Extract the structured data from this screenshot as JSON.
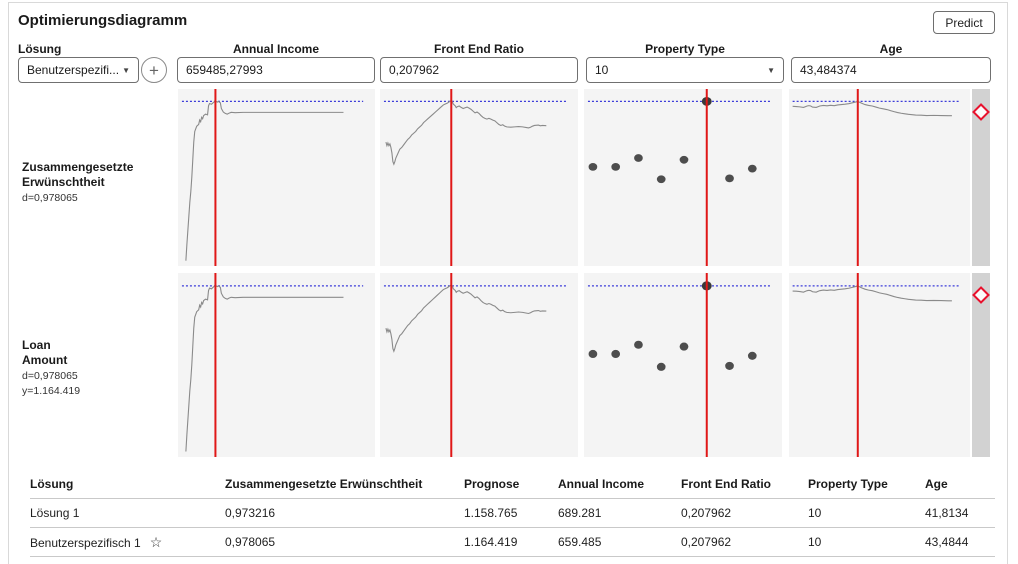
{
  "title": "Optimierungsdiagramm",
  "toolbar": {
    "predict_label": "Predict"
  },
  "icons": {
    "dropdown_chevron": "▼",
    "add": "+",
    "star": "☆"
  },
  "controls": {
    "solution_label": "Lösung",
    "solution_value": "Benutzerspezifi...",
    "factors": [
      {
        "label": "Annual Income",
        "value": "659485,27993",
        "control": "text-input"
      },
      {
        "label": "Front End Ratio",
        "value": "0,207962",
        "control": "text-input"
      },
      {
        "label": "Property Type",
        "value": "10",
        "control": "dropdown"
      },
      {
        "label": "Age",
        "value": "43,484374",
        "control": "text-input"
      }
    ]
  },
  "profiler_rows": [
    {
      "line1": "Zusammengesetzte",
      "line2": "Erwünschtheit",
      "stat1": "d=0,978065",
      "stat2": ""
    },
    {
      "line1": "Loan",
      "line2": "Amount",
      "stat1": "d=0,978065",
      "stat2": "y=1.164.419"
    }
  ],
  "chart_data": {
    "type": "line",
    "description": "Prediction profiler: response trace vs each of 4 factors; same trace shapes shown in row 1 (composite desirability d=0,978065) and row 2 (Loan Amount, y=1.164.419). Red vertical line = current factor setting, blue dotted line = optimum response level, red diamond handle in gray strip at right of each row.",
    "rows": [
      {
        "response": "Zusammengesetzte Erwünschtheit",
        "d": "0,978065"
      },
      {
        "response": "Loan Amount",
        "d": "0,978065",
        "y": "1.164.419"
      }
    ],
    "target_line_y_pct": 7,
    "columns": [
      {
        "factor": "Annual Income",
        "current_value": "659485,27993",
        "kind": "line",
        "red_line_x_pct": 19,
        "curve": [
          [
            4,
            97
          ],
          [
            4.5,
            88
          ],
          [
            5,
            80
          ],
          [
            5.5,
            72
          ],
          [
            6,
            64
          ],
          [
            6.5,
            58
          ],
          [
            7,
            50
          ],
          [
            7.5,
            40
          ],
          [
            8,
            30
          ],
          [
            8.5,
            24
          ],
          [
            9,
            22.5
          ],
          [
            9.5,
            21
          ],
          [
            10.5,
            20
          ],
          [
            11,
            17.5
          ],
          [
            11.5,
            18.5
          ],
          [
            12,
            16
          ],
          [
            12.5,
            16.8
          ],
          [
            13,
            15
          ],
          [
            14,
            14.2
          ],
          [
            15,
            14.6
          ],
          [
            15.5,
            9.5
          ],
          [
            16,
            8.2
          ],
          [
            17,
            8.6
          ],
          [
            18,
            7.6
          ],
          [
            19,
            6.8
          ],
          [
            20,
            7.4
          ],
          [
            20.5,
            7
          ],
          [
            21.5,
            7.8
          ],
          [
            22,
            11
          ],
          [
            23,
            13
          ],
          [
            24,
            13.8
          ],
          [
            25,
            14.2
          ],
          [
            26,
            13.6
          ],
          [
            27,
            13.2
          ],
          [
            29,
            13.4
          ],
          [
            33,
            13.2
          ],
          [
            84,
            13.2
          ]
        ]
      },
      {
        "factor": "Front End Ratio",
        "current_value": "0,207962",
        "kind": "line",
        "red_line_x_pct": 36,
        "curve": [
          [
            3,
            30
          ],
          [
            3.5,
            32
          ],
          [
            4,
            30.5
          ],
          [
            4.5,
            32
          ],
          [
            5,
            31
          ],
          [
            5.5,
            33
          ],
          [
            6,
            36
          ],
          [
            6.5,
            41
          ],
          [
            7,
            42.5
          ],
          [
            7.5,
            41
          ],
          [
            8,
            39
          ],
          [
            9,
            36.5
          ],
          [
            10,
            34
          ],
          [
            11,
            33
          ],
          [
            12,
            31.5
          ],
          [
            13,
            30
          ],
          [
            14,
            28.5
          ],
          [
            15,
            27.5
          ],
          [
            16,
            26
          ],
          [
            17,
            25
          ],
          [
            18,
            24
          ],
          [
            19,
            22.5
          ],
          [
            20,
            21.5
          ],
          [
            21,
            20.5
          ],
          [
            22,
            19
          ],
          [
            23,
            18
          ],
          [
            24,
            17
          ],
          [
            25,
            16
          ],
          [
            26,
            15
          ],
          [
            27,
            14
          ],
          [
            28,
            13
          ],
          [
            29,
            12
          ],
          [
            30,
            11
          ],
          [
            31,
            10
          ],
          [
            32,
            9
          ],
          [
            33,
            8.5
          ],
          [
            34,
            8
          ],
          [
            35,
            7.2
          ],
          [
            36,
            6.5
          ],
          [
            36.5,
            7
          ],
          [
            37,
            8.5
          ],
          [
            38,
            9.5
          ],
          [
            38.5,
            10.5
          ],
          [
            39,
            10
          ],
          [
            40,
            9.6
          ],
          [
            41,
            10.4
          ],
          [
            42,
            11
          ],
          [
            43,
            10.6
          ],
          [
            44,
            10.2
          ],
          [
            45,
            10.8
          ],
          [
            46,
            11.5
          ],
          [
            47,
            12.5
          ],
          [
            48,
            13.5
          ],
          [
            49,
            13
          ],
          [
            50,
            13.8
          ],
          [
            51,
            15
          ],
          [
            52,
            16
          ],
          [
            53,
            16.6
          ],
          [
            54,
            17
          ],
          [
            55,
            16.6
          ],
          [
            56,
            17
          ],
          [
            57,
            17.6
          ],
          [
            58,
            18
          ],
          [
            59,
            19
          ],
          [
            60,
            20
          ],
          [
            61,
            20.6
          ],
          [
            62,
            20.2
          ],
          [
            63,
            21
          ],
          [
            64,
            21.4
          ],
          [
            66,
            21.6
          ],
          [
            68,
            21.4
          ],
          [
            70,
            21.2
          ],
          [
            72,
            21.4
          ],
          [
            74,
            21.8
          ],
          [
            75,
            22
          ],
          [
            76,
            21.6
          ],
          [
            77,
            21
          ],
          [
            78,
            20.6
          ],
          [
            80,
            20.4
          ],
          [
            81,
            20.8
          ],
          [
            82,
            20.6
          ],
          [
            84,
            20.7
          ]
        ]
      },
      {
        "factor": "Property Type",
        "current_value": "10",
        "kind": "scatter",
        "red_line_x_pct": 62,
        "points": [
          [
            4.5,
            44
          ],
          [
            16,
            44
          ],
          [
            27.5,
            39
          ],
          [
            39,
            51
          ],
          [
            50.5,
            40
          ],
          [
            73.5,
            50.5
          ],
          [
            85,
            45
          ]
        ],
        "selected_point": [
          62,
          7
        ]
      },
      {
        "factor": "Age",
        "current_value": "43,484374",
        "kind": "line",
        "red_line_x_pct": 38,
        "curve": [
          [
            2,
            9.8
          ],
          [
            4,
            9.9
          ],
          [
            6,
            10.1
          ],
          [
            8,
            10.4
          ],
          [
            9,
            10
          ],
          [
            10,
            9.6
          ],
          [
            11,
            9.4
          ],
          [
            12,
            9.6
          ],
          [
            13,
            10.2
          ],
          [
            15,
            10.4
          ],
          [
            16,
            10
          ],
          [
            17,
            9.6
          ],
          [
            19,
            9.3
          ],
          [
            21,
            9.5
          ],
          [
            23,
            9.2
          ],
          [
            25,
            9.4
          ],
          [
            27,
            9
          ],
          [
            29,
            8.8
          ],
          [
            31,
            8.6
          ],
          [
            33,
            8.3
          ],
          [
            35,
            7.8
          ],
          [
            37,
            7.3
          ],
          [
            38,
            7.1
          ],
          [
            39,
            7.5
          ],
          [
            40,
            8
          ],
          [
            42,
            8.8
          ],
          [
            44,
            9.3
          ],
          [
            46,
            9.6
          ],
          [
            48,
            10.2
          ],
          [
            50,
            10.8
          ],
          [
            52,
            11.2
          ],
          [
            54,
            11.6
          ],
          [
            56,
            12.2
          ],
          [
            58,
            12.8
          ],
          [
            60,
            13.3
          ],
          [
            62,
            13.7
          ],
          [
            64,
            14
          ],
          [
            66,
            14.3
          ],
          [
            68,
            14.5
          ],
          [
            70,
            14.7
          ],
          [
            73,
            14.8
          ],
          [
            76,
            15
          ],
          [
            80,
            14.9
          ],
          [
            84,
            15
          ],
          [
            88,
            15.1
          ],
          [
            90,
            15.1
          ]
        ]
      }
    ],
    "colors": {
      "curve": "#8a8a8a",
      "current_line": "#e01717",
      "target_line": "#3d3dd9",
      "scatter_dot": "#4d4d4d",
      "plot_bg": "#f4f4f4",
      "strip_bg": "#d2d2d2",
      "diamond_stroke": "#e8112d"
    }
  },
  "table": {
    "headers": [
      "Lösung",
      "Zusammengesetzte Erwünschtheit",
      "Prognose",
      "Annual Income",
      "Front End Ratio",
      "Property Type",
      "Age"
    ],
    "rows": [
      {
        "starred": false,
        "cells": [
          "Lösung 1",
          "0,973216",
          "1.158.765",
          "689.281",
          "0,207962",
          "10",
          "41,8134"
        ]
      },
      {
        "starred": true,
        "cells": [
          "Benutzerspezifisch 1",
          "0,978065",
          "1.164.419",
          "659.485",
          "0,207962",
          "10",
          "43,4844"
        ]
      }
    ]
  }
}
